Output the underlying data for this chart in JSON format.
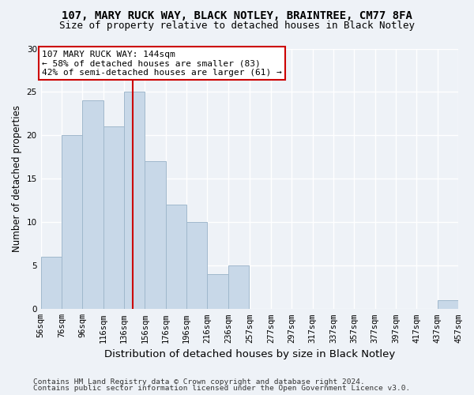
{
  "title1": "107, MARY RUCK WAY, BLACK NOTLEY, BRAINTREE, CM77 8FA",
  "title2": "Size of property relative to detached houses in Black Notley",
  "xlabel": "Distribution of detached houses by size in Black Notley",
  "ylabel": "Number of detached properties",
  "footnote1": "Contains HM Land Registry data © Crown copyright and database right 2024.",
  "footnote2": "Contains public sector information licensed under the Open Government Licence v3.0.",
  "bin_edges": [
    56,
    76,
    96,
    116,
    136,
    156,
    176,
    196,
    216,
    236,
    257,
    277,
    297,
    317,
    337,
    357,
    377,
    397,
    417,
    437,
    457
  ],
  "bin_counts": [
    6,
    20,
    24,
    21,
    25,
    17,
    12,
    10,
    4,
    5,
    0,
    0,
    0,
    0,
    0,
    0,
    0,
    0,
    0,
    1
  ],
  "bar_color": "#c8d8e8",
  "bar_edgecolor": "#a0b8cc",
  "property_size": 144,
  "vline_color": "#cc0000",
  "annotation_line1": "107 MARY RUCK WAY: 144sqm",
  "annotation_line2": "← 58% of detached houses are smaller (83)",
  "annotation_line3": "42% of semi-detached houses are larger (61) →",
  "annotation_box_color": "white",
  "annotation_box_edgecolor": "#cc0000",
  "ylim": [
    0,
    30
  ],
  "yticks": [
    0,
    5,
    10,
    15,
    20,
    25,
    30
  ],
  "background_color": "#eef2f7",
  "grid_color": "white",
  "title1_fontsize": 10,
  "title2_fontsize": 9,
  "ylabel_fontsize": 8.5,
  "xlabel_fontsize": 9.5,
  "tick_fontsize": 7.5,
  "annotation_fontsize": 8,
  "footnote_fontsize": 6.8
}
